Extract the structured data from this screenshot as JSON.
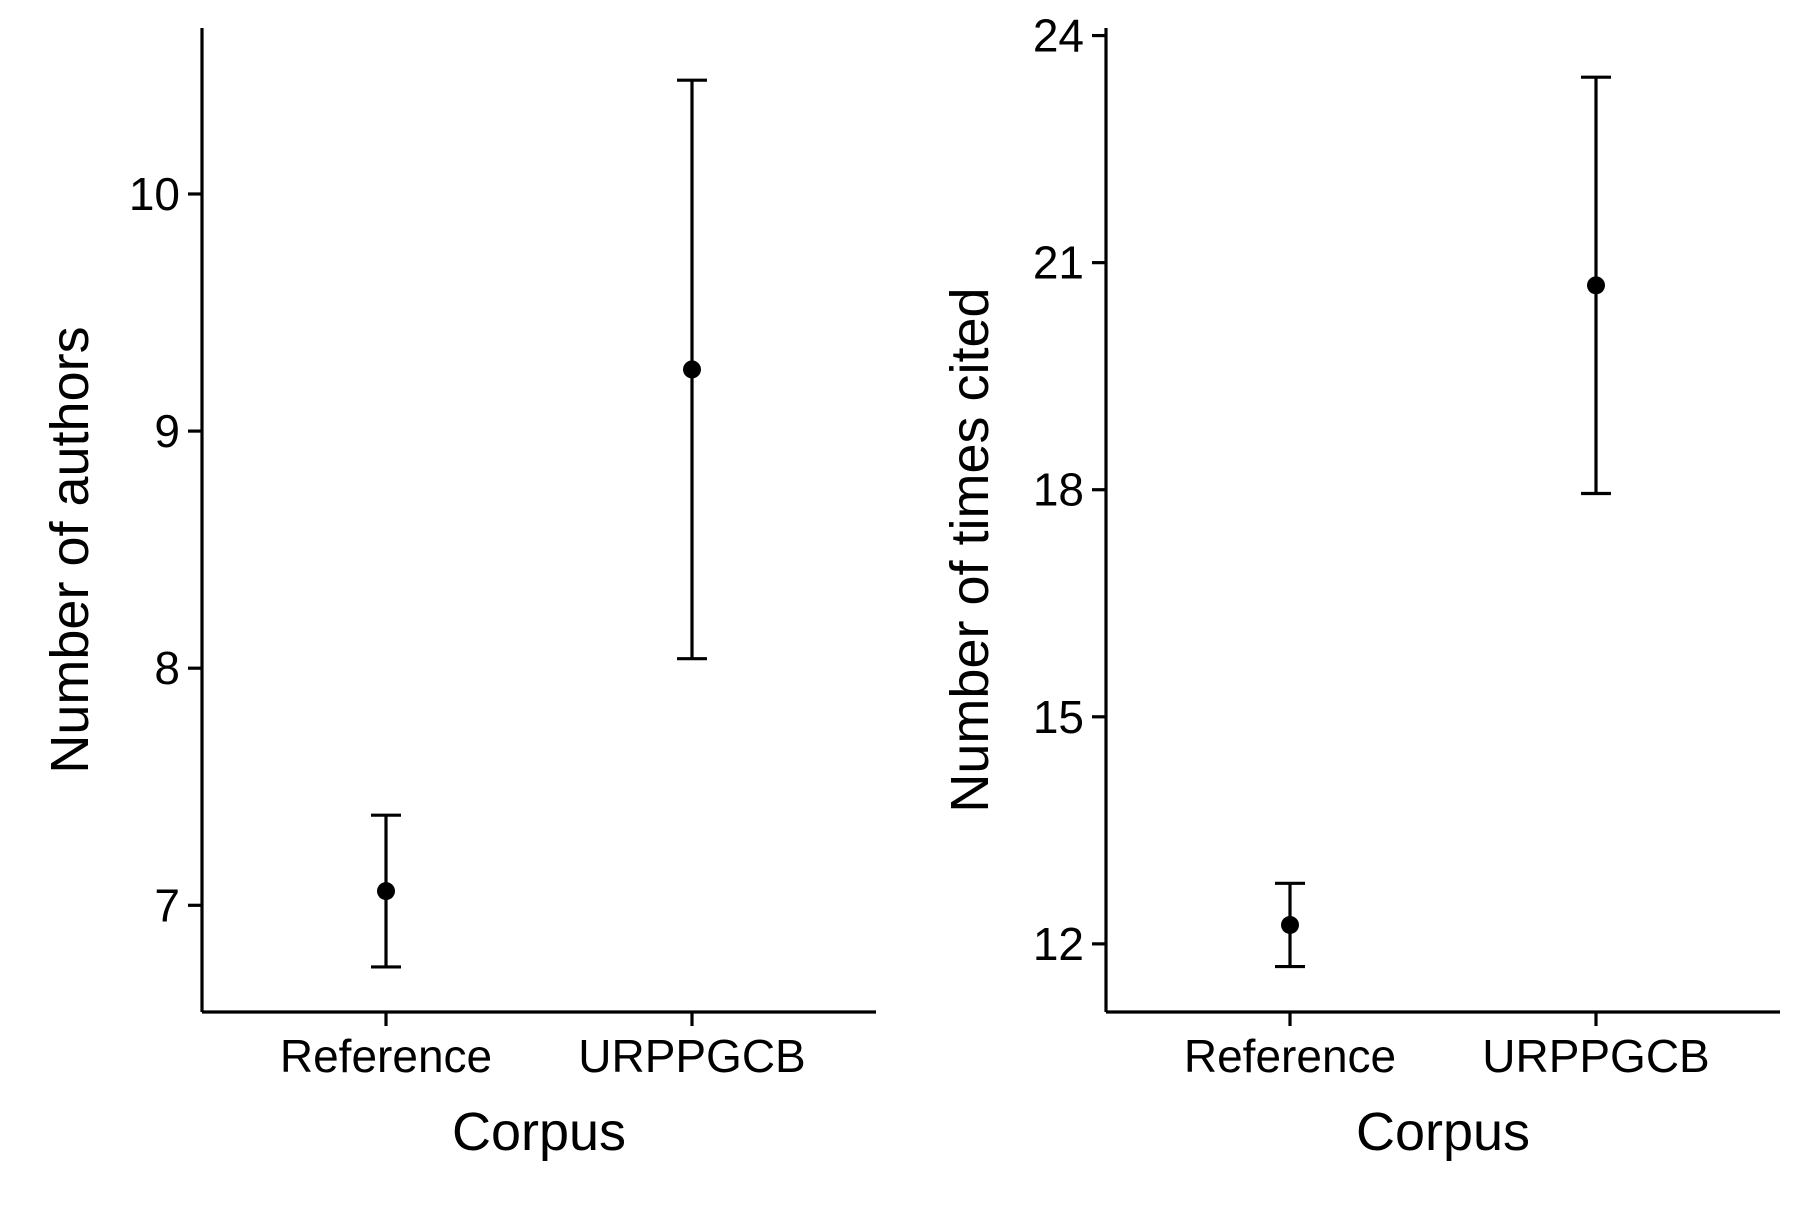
{
  "chart_data": [
    {
      "type": "scatter",
      "title": "",
      "xlabel": "Corpus",
      "ylabel": "Number of authors",
      "categories": [
        "Reference",
        "URPPGCB"
      ],
      "yticks": [
        "7",
        "8",
        "9",
        "10"
      ],
      "ylim": [
        6.55,
        10.7
      ],
      "points": [
        {
          "x": "Reference",
          "y": 7.06,
          "lower": 6.74,
          "upper": 7.38
        },
        {
          "x": "URPPGCB",
          "y": 9.26,
          "lower": 8.04,
          "upper": 10.48
        }
      ],
      "grid": false,
      "legend": "none"
    },
    {
      "type": "scatter",
      "title": "",
      "xlabel": "Corpus",
      "ylabel": "Number of times cited",
      "categories": [
        "Reference",
        "URPPGCB"
      ],
      "yticks": [
        "12",
        "15",
        "18",
        "21",
        "24"
      ],
      "ylim": [
        11.1,
        24.1
      ],
      "points": [
        {
          "x": "Reference",
          "y": 12.25,
          "lower": 11.7,
          "upper": 12.8
        },
        {
          "x": "URPPGCB",
          "y": 20.7,
          "lower": 17.95,
          "upper": 23.45
        }
      ],
      "grid": false,
      "legend": "none"
    }
  ]
}
